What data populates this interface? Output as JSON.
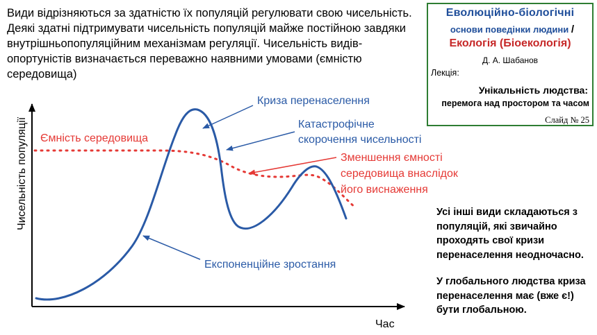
{
  "intro_text": "Види відрізняються за здатністю їх популяцій регулювати свою чисельність. Деякі здатні підтримувати чисельність популяцій майже постійною завдяки внутрішньопопуляційним механізмам регуляції. Чисельність видів-опортуністів визначається переважно наявними умовами (ємністю середовища)",
  "title_box": {
    "title_line1": "Еволюційно-біологічні",
    "title_line2": "основи поведінки людини",
    "slash": "/",
    "title_line3": "Екологія (Біоекологія)",
    "author": "Д. А. Шабанов",
    "lecture_label": "Лекція:",
    "lecture_title1": "Унікальність людства:",
    "lecture_title2": "перемога над простором та часом",
    "slide": "Слайд № 25"
  },
  "diagram": {
    "y_axis_label": "Чисельність популяції",
    "x_axis_label": "Час",
    "capacity_label": "Ємність середовища",
    "crisis_label": "Криза перенаселення",
    "collapse_label_line1": "Катастрофічне",
    "collapse_label_line2": "скорочення чисельності",
    "depletion_label_line1": "Зменшення ємності",
    "depletion_label_line2": "середовища внаслідок",
    "depletion_label_line3": "його виснаження",
    "growth_label": "Експоненційне зростання"
  },
  "side_notes": {
    "note1": "Усі інші види складаються з популяцій, які звичайно проходять свої кризи перенаселення неодночасно.",
    "note2": "У глобального людства криза перенаселення має (вже є!) бути глобальною."
  },
  "colors": {
    "curve": "#2a5aa6",
    "capacity": "#e53935",
    "title_blue": "#1f4e9a",
    "title_red": "#c62828",
    "box_border": "#2e7d32"
  }
}
